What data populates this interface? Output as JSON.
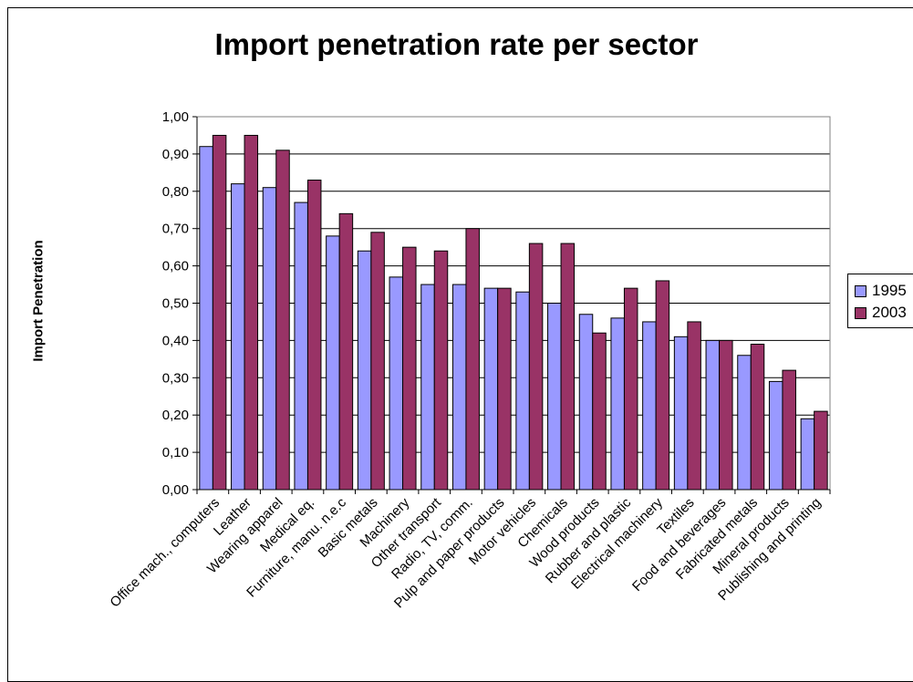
{
  "chart_data": {
    "type": "bar",
    "title": "Import penetration rate per sector",
    "xlabel": "",
    "ylabel": "Import Penetration",
    "ylim": [
      0,
      1
    ],
    "yticks": [
      "0,00",
      "0,10",
      "0,20",
      "0,30",
      "0,40",
      "0,50",
      "0,60",
      "0,70",
      "0,80",
      "0,90",
      "1,00"
    ],
    "grid": "horizontal",
    "legend_position": "right",
    "categories": [
      "Office mach., computers",
      "Leather",
      "Wearing apparel",
      "Medical eq.",
      "Furniture, manu. n.e.c",
      "Basic metals",
      "Machinery",
      "Other transport",
      "Radio, TV, comm.",
      "Pulp and paper products",
      "Motor vehicles",
      "Chemicals",
      "Wood products",
      "Rubber and plastic",
      "Electrical machinery",
      "Textiles",
      "Food and beverages",
      "Fabricated metals",
      "Mineral products",
      "Publishing and printing"
    ],
    "series": [
      {
        "name": "1995",
        "color": "#9999ff",
        "values": [
          0.92,
          0.82,
          0.81,
          0.77,
          0.68,
          0.64,
          0.57,
          0.55,
          0.55,
          0.54,
          0.53,
          0.5,
          0.47,
          0.46,
          0.45,
          0.41,
          0.4,
          0.36,
          0.29,
          0.19
        ]
      },
      {
        "name": "2003",
        "color": "#993366",
        "values": [
          0.95,
          0.95,
          0.91,
          0.83,
          0.74,
          0.69,
          0.65,
          0.64,
          0.7,
          0.54,
          0.66,
          0.66,
          0.42,
          0.54,
          0.56,
          0.45,
          0.4,
          0.39,
          0.32,
          0.21
        ]
      }
    ]
  }
}
